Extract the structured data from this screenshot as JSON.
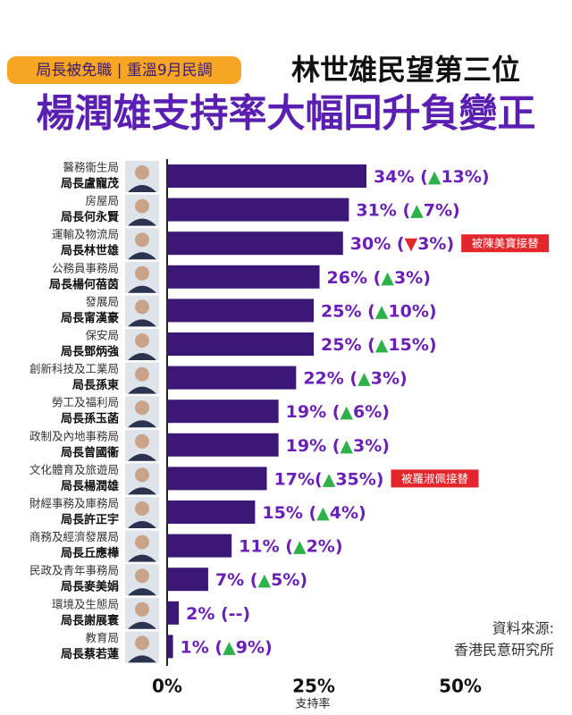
{
  "chart_data": {
    "type": "bar",
    "orientation": "horizontal",
    "badge": "局長被免職 | 重溫9月民調",
    "title": "林世雄民望第三位",
    "subtitle": "楊潤雄支持率大幅回升負變正",
    "bureaus": [
      "醫務衞生局",
      "房屋局",
      "運輸及物流局",
      "公務員事務局",
      "發展局",
      "保安局",
      "創新科技及工業局",
      "勞工及福利局",
      "政制及內地事務局",
      "文化體育及旅遊局",
      "財經事務及庫務局",
      "商務及經濟發展局",
      "民政及青年事務局",
      "環境及生態局",
      "教育局"
    ],
    "categories": [
      "局長盧寵茂",
      "局長何永賢",
      "局長林世雄",
      "局長楊何蓓茵",
      "局長甯漢豪",
      "局長鄧炳強",
      "局長孫東",
      "局長孫玉菡",
      "局長曾國衞",
      "局長楊潤雄",
      "局長許正宇",
      "局長丘應樺",
      "局長麥美娟",
      "局長謝展寰",
      "局長蔡若蓮"
    ],
    "values": [
      34,
      31,
      30,
      26,
      25,
      25,
      22,
      19,
      19,
      17,
      15,
      11,
      7,
      2,
      1
    ],
    "value_labels": [
      "34% (▲13%)",
      "31% (▲7%)",
      "30% (▼3%)",
      "26% (▲3%)",
      "25% (▲10%)",
      "25% (▲15%)",
      "22% (▲3%)",
      "19% (▲6%)",
      "19% (▲3%)",
      "17%(▲35%)",
      "15% (▲4%)",
      "11% (▲2%)",
      "7% (▲5%)",
      "2% (--)",
      "1% (▲9%)"
    ],
    "notes": [
      null,
      null,
      "被陳美寶接替",
      null,
      null,
      null,
      null,
      null,
      null,
      "被羅淑佩接替",
      null,
      null,
      null,
      null,
      null
    ],
    "color": "#3b1878",
    "up_color": "#2eb04b",
    "down_color": "#e3262b",
    "xlabel": "支持率",
    "xlim": [
      0,
      50
    ],
    "xticks": [
      {
        "value": 0,
        "label": "0%"
      },
      {
        "value": 25,
        "label": "25%"
      },
      {
        "value": 50,
        "label": "50%"
      }
    ],
    "source": [
      "資料來源:",
      "香港民意研究所"
    ]
  }
}
